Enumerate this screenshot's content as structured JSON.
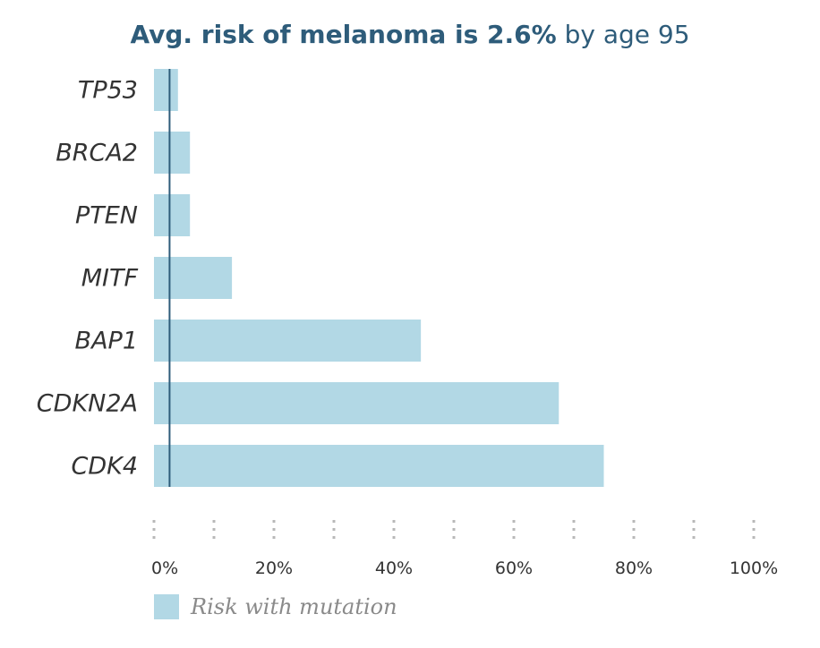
{
  "chart_data": {
    "type": "bar",
    "orientation": "horizontal",
    "title": "Avg. risk of melanoma is 2.6% by age 95",
    "title_parts": {
      "strong": "Avg. risk of melanoma is 2.6%",
      "light": "by age 95"
    },
    "categories": [
      "TP53",
      "BRCA2",
      "PTEN",
      "MITF",
      "BAP1",
      "CDKN2A",
      "CDK4"
    ],
    "series": [
      {
        "name": "Risk with mutation",
        "values": [
          4,
          6,
          6,
          13,
          44.5,
          67.5,
          75
        ]
      }
    ],
    "reference_line": {
      "value": 2.6
    },
    "xlim": [
      0,
      100
    ],
    "x_ticks": [
      0,
      10,
      20,
      30,
      40,
      50,
      60,
      70,
      80,
      90,
      100
    ],
    "x_tick_labels": [
      {
        "value": 0,
        "label": "0%"
      },
      {
        "value": 20,
        "label": "20%"
      },
      {
        "value": 40,
        "label": "40%"
      },
      {
        "value": 60,
        "label": "60%"
      },
      {
        "value": 80,
        "label": "80%"
      },
      {
        "value": 100,
        "label": "100%"
      }
    ],
    "grid": false,
    "legend": {
      "position": "bottom-left"
    },
    "colors": {
      "bar": "#b2d8e5",
      "reference_line": "#2e5c7a",
      "tick_marks": "#b8b8b8"
    }
  }
}
